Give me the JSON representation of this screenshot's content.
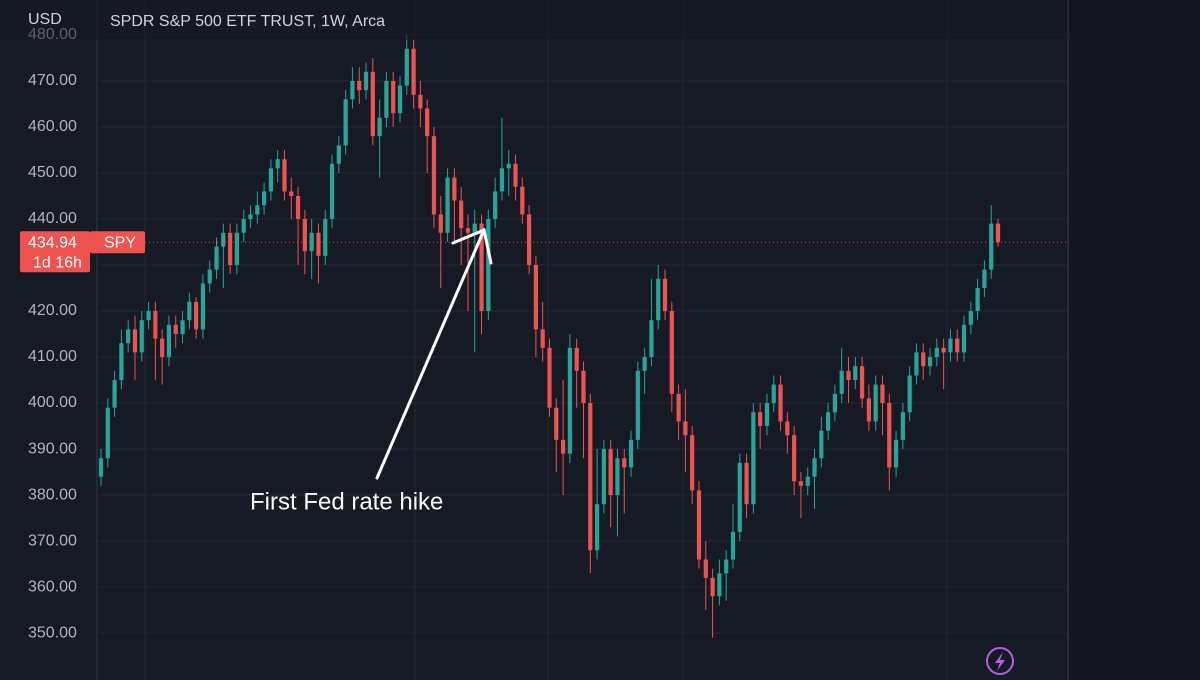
{
  "chart_data": {
    "type": "candlestick",
    "title": "SPDR S&P 500 ETF TRUST, 1W, Arca",
    "currency": "USD",
    "annotation": "First Fed rate hike",
    "symbol": "SPY",
    "countdown": "1d 16h",
    "last_price": 434.94,
    "up_color": "#26a69a",
    "down_color": "#ef5350",
    "grid": true,
    "ylim": [
      339.8,
      487.6
    ],
    "yticks": [
      {
        "value": 350,
        "label": "350.00"
      },
      {
        "value": 360,
        "label": "360.00"
      },
      {
        "value": 370,
        "label": "370.00"
      },
      {
        "value": 380,
        "label": "380.00"
      },
      {
        "value": 390,
        "label": "390.00"
      },
      {
        "value": 400,
        "label": "400.00"
      },
      {
        "value": 410,
        "label": "410.00"
      },
      {
        "value": 420,
        "label": "420.00"
      },
      {
        "value": 430,
        "label": "430.00"
      },
      {
        "value": 440,
        "label": "440.00"
      },
      {
        "value": 450,
        "label": "450.00"
      },
      {
        "value": 460,
        "label": "460.00"
      },
      {
        "value": 470,
        "label": "470.00"
      },
      {
        "value": 480,
        "label": "480.00"
      }
    ],
    "series": {
      "open": [
        384,
        388,
        399,
        405,
        413,
        416,
        411,
        418,
        420,
        414,
        410,
        417,
        415,
        418,
        422,
        416,
        426,
        429,
        434,
        437,
        430,
        437,
        440,
        441,
        443,
        446,
        451,
        453,
        446,
        445,
        440,
        433,
        437,
        432,
        440,
        452,
        456,
        466,
        470,
        468,
        472,
        458,
        462,
        470,
        463,
        469,
        477,
        467,
        464,
        458,
        441,
        437,
        449,
        444,
        438,
        437,
        439,
        420,
        440,
        446,
        451,
        452,
        447,
        441,
        430,
        416,
        412,
        399,
        392,
        389,
        412,
        407,
        400,
        368,
        378,
        390,
        380,
        388,
        386,
        392,
        407,
        410,
        418,
        427,
        420,
        402,
        396,
        393,
        381,
        366,
        362,
        358,
        363,
        366,
        372,
        387,
        378,
        398,
        395,
        400,
        404,
        396,
        393,
        383,
        382,
        384,
        388,
        394,
        398,
        402,
        407,
        405,
        408,
        401,
        396,
        404,
        400,
        386,
        392,
        398,
        406,
        411,
        408,
        410,
        412,
        411,
        414,
        411,
        417,
        420,
        425,
        429,
        439
      ],
      "high": [
        390,
        401,
        407,
        416,
        418,
        419,
        420,
        422,
        422,
        416,
        419,
        419,
        420,
        424,
        423,
        428,
        431,
        436,
        439,
        439,
        439,
        442,
        443,
        446,
        448,
        453,
        455,
        455,
        449,
        447,
        442,
        440,
        439,
        442,
        454,
        458,
        468,
        473,
        473,
        474,
        475,
        466,
        472,
        472,
        471,
        480,
        479,
        470,
        466,
        460,
        445,
        451,
        451,
        447,
        441,
        442,
        441,
        442,
        449,
        462,
        455,
        454,
        449,
        443,
        432,
        422,
        414,
        401,
        405,
        415,
        414,
        409,
        402,
        390,
        392,
        392,
        390,
        390,
        394,
        409,
        412,
        427,
        430,
        429,
        422,
        404,
        403,
        395,
        383,
        370,
        364,
        366,
        368,
        378,
        389,
        389,
        400,
        400,
        402,
        406,
        406,
        398,
        395,
        385,
        386,
        390,
        397,
        400,
        404,
        412,
        410,
        410,
        410,
        404,
        406,
        406,
        402,
        394,
        400,
        408,
        413,
        413,
        412,
        414,
        414,
        416,
        416,
        419,
        422,
        427,
        431,
        443,
        440
      ],
      "low": [
        382,
        386,
        397,
        403,
        411,
        405,
        409,
        416,
        405,
        404,
        408,
        412,
        413,
        416,
        414,
        414,
        424,
        427,
        425,
        428,
        428,
        435,
        438,
        439,
        441,
        444,
        448,
        444,
        440,
        430,
        428,
        427,
        426,
        430,
        438,
        450,
        454,
        464,
        465,
        466,
        456,
        449,
        460,
        460,
        461,
        467,
        464,
        460,
        450,
        438,
        425,
        435,
        435,
        430,
        420,
        411,
        415,
        418,
        438,
        444,
        445,
        444,
        439,
        428,
        410,
        409,
        397,
        385,
        380,
        387,
        399,
        388,
        363,
        366,
        376,
        373,
        371,
        376,
        384,
        390,
        402,
        408,
        416,
        418,
        398,
        392,
        385,
        378,
        364,
        355,
        349,
        356,
        357,
        364,
        370,
        375,
        376,
        390,
        393,
        398,
        394,
        389,
        380,
        375,
        380,
        377,
        386,
        392,
        396,
        400,
        400,
        403,
        399,
        394,
        394,
        393,
        381,
        384,
        390,
        396,
        404,
        405,
        406,
        408,
        403,
        409,
        409,
        409,
        415,
        418,
        423,
        427,
        434
      ],
      "close": [
        388,
        399,
        405,
        413,
        416,
        411,
        418,
        420,
        414,
        410,
        417,
        415,
        418,
        422,
        416,
        426,
        429,
        434,
        437,
        430,
        437,
        440,
        441,
        443,
        446,
        451,
        453,
        446,
        445,
        440,
        433,
        437,
        432,
        440,
        452,
        456,
        466,
        470,
        468,
        472,
        458,
        462,
        470,
        463,
        469,
        477,
        467,
        464,
        458,
        441,
        437,
        449,
        444,
        438,
        437,
        439,
        420,
        440,
        446,
        451,
        452,
        447,
        441,
        430,
        416,
        412,
        399,
        392,
        389,
        412,
        407,
        400,
        368,
        378,
        390,
        380,
        388,
        386,
        392,
        407,
        410,
        418,
        427,
        420,
        402,
        396,
        393,
        381,
        366,
        362,
        358,
        363,
        366,
        372,
        387,
        378,
        398,
        395,
        400,
        404,
        396,
        393,
        383,
        382,
        384,
        388,
        394,
        398,
        402,
        407,
        405,
        408,
        401,
        396,
        404,
        400,
        386,
        392,
        398,
        406,
        411,
        408,
        410,
        412,
        411,
        414,
        411,
        417,
        420,
        425,
        429,
        439,
        434.94
      ]
    }
  }
}
